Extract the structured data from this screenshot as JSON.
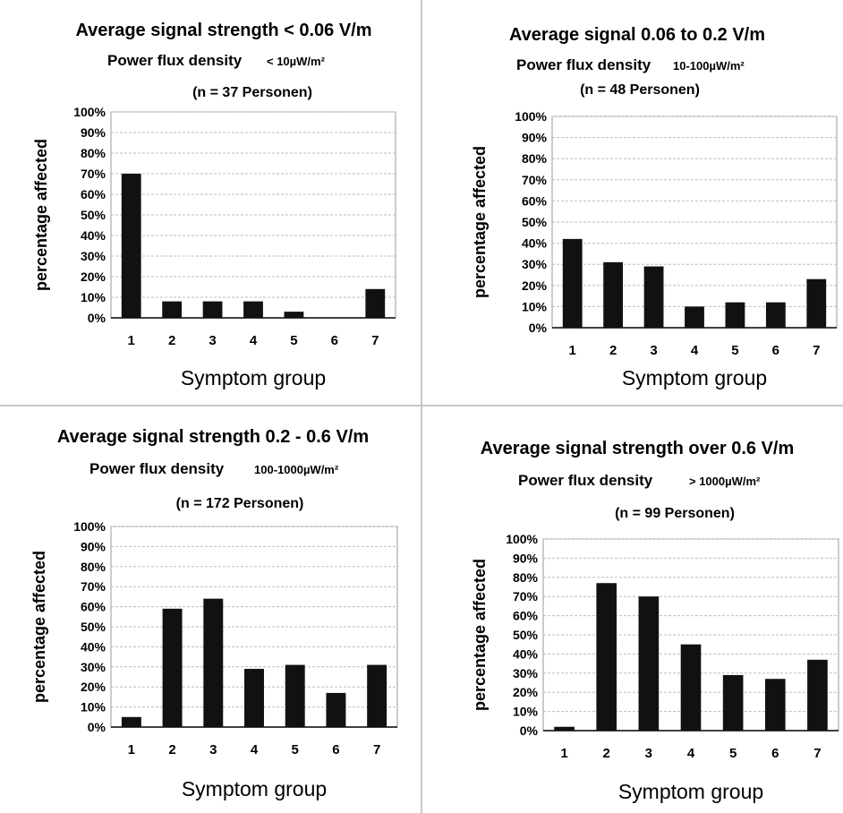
{
  "chart_data": [
    {
      "type": "bar",
      "title": "Average signal strength < 0.06 V/m",
      "subtitle_label": "Power flux density",
      "subtitle_value": "< 10µW/m²",
      "sample_note": "(n = 37 Personen)",
      "xlabel": "Symptom group",
      "ylabel": "percentage affected",
      "categories": [
        "1",
        "2",
        "3",
        "4",
        "5",
        "6",
        "7"
      ],
      "values": [
        70,
        8,
        8,
        8,
        3,
        0,
        14
      ],
      "ylim": [
        0,
        100
      ],
      "yticks": [
        "0%",
        "10%",
        "20%",
        "30%",
        "40%",
        "50%",
        "60%",
        "70%",
        "80%",
        "90%",
        "100%"
      ],
      "grid": true
    },
    {
      "type": "bar",
      "title": "Average signal  0.06 to 0.2 V/m",
      "subtitle_label": "Power flux density",
      "subtitle_value": "10-100µW/m²",
      "sample_note": "(n = 48 Personen)",
      "xlabel": "Symptom group",
      "ylabel": "percentage affected",
      "categories": [
        "1",
        "2",
        "3",
        "4",
        "5",
        "6",
        "7"
      ],
      "values": [
        42,
        31,
        29,
        10,
        12,
        12,
        23
      ],
      "ylim": [
        0,
        100
      ],
      "yticks": [
        "0%",
        "10%",
        "20%",
        "30%",
        "40%",
        "50%",
        "60%",
        "70%",
        "80%",
        "90%",
        "100%"
      ],
      "grid": true
    },
    {
      "type": "bar",
      "title": "Average signal strength 0.2 - 0.6 V/m",
      "subtitle_label": "Power flux density",
      "subtitle_value": "100-1000µW/m²",
      "sample_note": "(n = 172 Personen)",
      "xlabel": "Symptom group",
      "ylabel": "percentage affected",
      "categories": [
        "1",
        "2",
        "3",
        "4",
        "5",
        "6",
        "7"
      ],
      "values": [
        5,
        59,
        64,
        29,
        31,
        17,
        31
      ],
      "ylim": [
        0,
        100
      ],
      "yticks": [
        "0%",
        "10%",
        "20%",
        "30%",
        "40%",
        "50%",
        "60%",
        "70%",
        "80%",
        "90%",
        "100%"
      ],
      "grid": true
    },
    {
      "type": "bar",
      "title": "Average signal strength over 0.6 V/m",
      "subtitle_label": "Power flux density",
      "subtitle_value": "> 1000µW/m²",
      "sample_note": "(n = 99 Personen)",
      "xlabel": "Symptom group",
      "ylabel": "percentage affected",
      "categories": [
        "1",
        "2",
        "3",
        "4",
        "5",
        "6",
        "7"
      ],
      "values": [
        2,
        77,
        70,
        45,
        29,
        27,
        37
      ],
      "ylim": [
        0,
        100
      ],
      "yticks": [
        "0%",
        "10%",
        "20%",
        "30%",
        "40%",
        "50%",
        "60%",
        "70%",
        "80%",
        "90%",
        "100%"
      ],
      "grid": true
    }
  ],
  "colors": {
    "bar": "#111111",
    "grid": "#bdbdbd",
    "plot_border": "#9a9a9a",
    "text": "#000000"
  }
}
